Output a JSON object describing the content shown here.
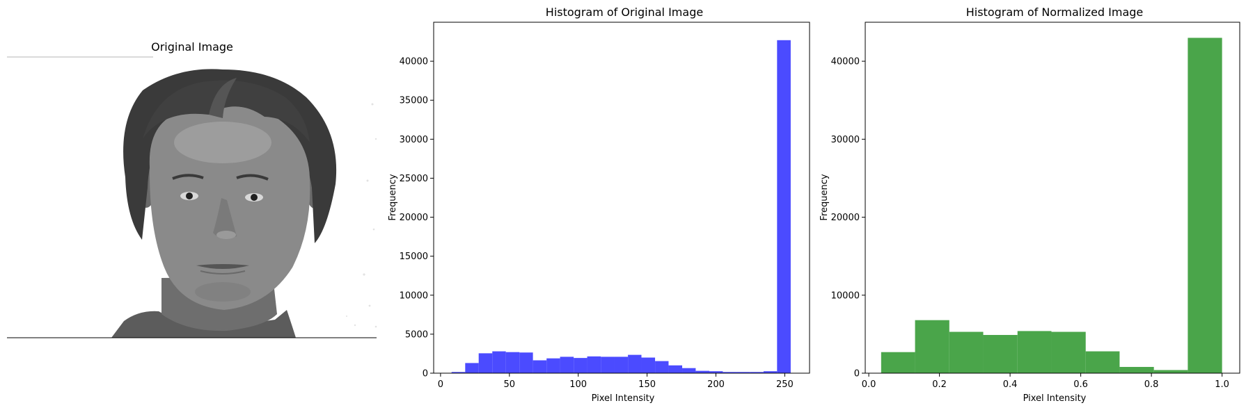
{
  "image_panel": {
    "title": "Original Image",
    "description": "Grayscale portrait photograph"
  },
  "chart_data": [
    {
      "type": "bar",
      "title": "Histogram of Original Image",
      "xlabel": "Pixel Intensity",
      "ylabel": "Frequency",
      "xlim": [
        -5,
        268
      ],
      "ylim": [
        0,
        45000
      ],
      "xticks": [
        0,
        50,
        100,
        150,
        200,
        250
      ],
      "yticks": [
        0,
        5000,
        10000,
        15000,
        20000,
        25000,
        30000,
        35000,
        40000
      ],
      "color": "#4b4bff",
      "bin_edges": [
        8,
        17.9,
        27.7,
        37.6,
        47.4,
        57.3,
        67.1,
        77,
        86.8,
        96.7,
        106.5,
        116.4,
        126.2,
        136.1,
        145.9,
        155.8,
        165.6,
        175.5,
        185.3,
        195.2,
        205,
        214.9,
        224.7,
        234.6,
        244.4,
        254.3
      ],
      "values": [
        150,
        1300,
        2550,
        2800,
        2700,
        2650,
        1650,
        1900,
        2100,
        1950,
        2150,
        2100,
        2100,
        2350,
        2000,
        1550,
        1000,
        650,
        300,
        250,
        150,
        150,
        150,
        250,
        42700
      ]
    },
    {
      "type": "bar",
      "title": "Histogram of Normalized Image",
      "xlabel": "Pixel Intensity",
      "ylabel": "Frequency",
      "xlim": [
        -0.01,
        1.05
      ],
      "ylim": [
        0,
        45000
      ],
      "xticks": [
        0.0,
        0.2,
        0.4,
        0.6,
        0.8,
        1.0
      ],
      "xtick_labels": [
        "0.0",
        "0.2",
        "0.4",
        "0.6",
        "0.8",
        "1.0"
      ],
      "yticks": [
        0,
        10000,
        20000,
        30000,
        40000
      ],
      "color": "#4aa54a",
      "bin_edges": [
        0.035,
        0.131,
        0.228,
        0.324,
        0.421,
        0.517,
        0.614,
        0.71,
        0.807,
        0.903,
        1.0
      ],
      "values": [
        2700,
        6800,
        5300,
        4900,
        5400,
        5300,
        2800,
        800,
        400,
        43000
      ]
    }
  ]
}
